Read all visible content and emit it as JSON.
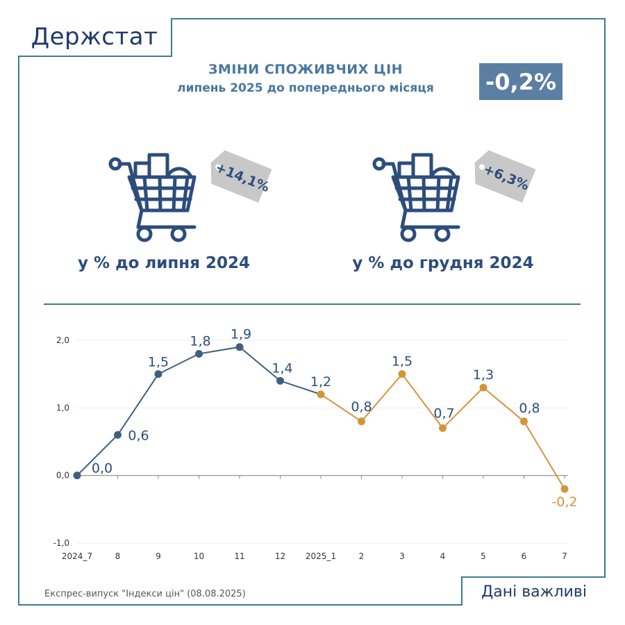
{
  "brand": "Держстат",
  "header": {
    "title": "ЗМІНИ СПОЖИВЧИХ ЦІН",
    "subtitle": "липень 2025 до попереднього місяця",
    "value": "-0,2%"
  },
  "cards": [
    {
      "icon": "shopping-cart-icon",
      "tag": "+14,1%",
      "label": "у % до липня 2024"
    },
    {
      "icon": "shopping-cart-icon",
      "tag": "+6,3%",
      "label": "у % до грудня 2024"
    }
  ],
  "colors": {
    "text": "#2c4d7c",
    "accent": "#5b7ea3",
    "frame": "#3d7b8c",
    "series_2024": "#3e5f80",
    "series_2025": "#d4953a",
    "tag": "#c8c8c8"
  },
  "chart_data": {
    "type": "line",
    "categories": [
      "2024_7",
      "8",
      "9",
      "10",
      "11",
      "12",
      "2025_1",
      "2",
      "3",
      "4",
      "5",
      "6",
      "7"
    ],
    "values": [
      0.0,
      0.6,
      1.5,
      1.8,
      1.9,
      1.4,
      1.2,
      0.8,
      1.5,
      0.7,
      1.3,
      0.8,
      -0.2
    ],
    "value_labels": [
      "0,0",
      "0,6",
      "1,5",
      "1,8",
      "1,9",
      "1,4",
      "1,2",
      "0,8",
      "1,5",
      "0,7",
      "1,3",
      "0,8",
      "-0,2"
    ],
    "series": [
      {
        "color": "#3e5f80",
        "from_index": 0,
        "to_index": 6
      },
      {
        "color": "#d4953a",
        "from_index": 6,
        "to_index": 12
      }
    ],
    "ylim": [
      -1.0,
      2.0
    ],
    "yticks": [
      -1.0,
      0.0,
      1.0,
      2.0
    ],
    "ytick_labels": [
      "-1,0",
      "0,0",
      "1,0",
      "2,0"
    ],
    "grid": true,
    "title": "",
    "xlabel": "",
    "ylabel": ""
  },
  "footer": {
    "note": "Експрес-випуск \"Індекси цін\" (08.08.2025)",
    "box": "Дані важливі"
  }
}
